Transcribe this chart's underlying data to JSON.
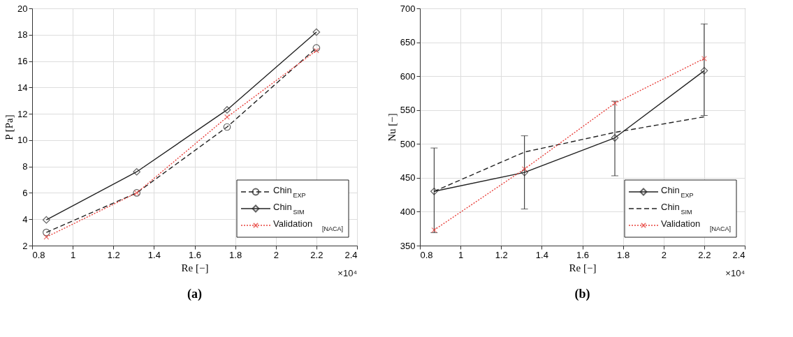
{
  "chart_data": [
    {
      "type": "line",
      "title": "(a)",
      "xlabel": "Re [−]",
      "ylabel": "P [Pa]",
      "x": [
        0.87,
        1.315,
        1.76,
        2.2
      ],
      "xlim": [
        0.8,
        2.4
      ],
      "xticks": [
        0.8,
        1,
        1.2,
        1.4,
        1.6,
        1.8,
        2,
        2.2,
        2.4
      ],
      "ylim": [
        2,
        20
      ],
      "yticks": [
        2,
        4,
        6,
        8,
        10,
        12,
        14,
        16,
        18,
        20
      ],
      "grid": true,
      "legend": "bottom right",
      "annotations": [
        "×10⁴"
      ],
      "series": [
        {
          "name": "Chin$_{EXP}$",
          "color": "#222222",
          "values": [
            3.0,
            6.0,
            11.0,
            17.0
          ],
          "marker": "circle",
          "line_style": "dashed"
        },
        {
          "name": "Chin$_{SIM}$",
          "color": "#222222",
          "values": [
            3.95,
            7.6,
            12.3,
            18.2
          ],
          "marker": "diamond",
          "line_style": "solid"
        },
        {
          "name": "Validation$_{[NACA]}$",
          "color": "#e8413c",
          "values": [
            2.65,
            6.0,
            11.75,
            16.8
          ],
          "marker": "cross",
          "line_style": "dotted"
        }
      ]
    },
    {
      "type": "line",
      "title": "(b)",
      "xlabel": "Re [−]",
      "ylabel": "Nu [−]",
      "x": [
        0.87,
        1.315,
        1.76,
        2.2
      ],
      "xlim": [
        0.8,
        2.4
      ],
      "xticks": [
        0.8,
        1,
        1.2,
        1.4,
        1.6,
        1.8,
        2,
        2.2,
        2.4
      ],
      "ylim": [
        350,
        700
      ],
      "yticks": [
        350,
        400,
        450,
        500,
        550,
        600,
        650,
        700
      ],
      "grid": true,
      "legend": "bottom right",
      "annotations": [
        "×10⁴"
      ],
      "series": [
        {
          "name": "Chin$_{EXP}$",
          "color": "#222222",
          "values": [
            430,
            458,
            509,
            608
          ],
          "errors": [
            [
              369,
              494
            ],
            [
              404,
              512
            ],
            [
              453,
              563
            ],
            [
              542,
              677
            ]
          ],
          "marker": "diamond",
          "line_style": "solid"
        },
        {
          "name": "Chin$_{SIM}$",
          "color": "#222222",
          "values": [
            430,
            488,
            517,
            540
          ],
          "marker": "none",
          "line_style": "dashed"
        },
        {
          "name": "Validation$_{[NACA]}$",
          "color": "#e8413c",
          "values": [
            373,
            463,
            560,
            626
          ],
          "marker": "cross",
          "line_style": "dotted"
        }
      ]
    }
  ]
}
